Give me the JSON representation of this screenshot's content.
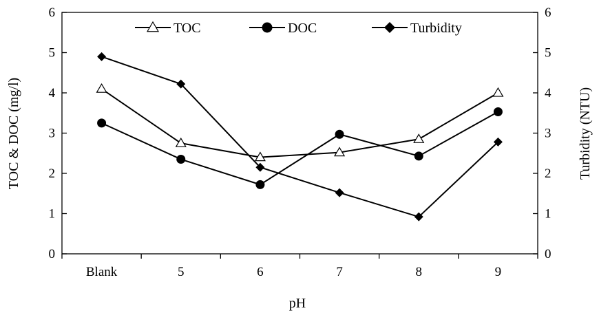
{
  "chart_data": {
    "type": "line",
    "categories": [
      "Blank",
      "5",
      "6",
      "7",
      "8",
      "9"
    ],
    "xlabel": "pH",
    "ylabel_left": "TOC & DOC (mg/l)",
    "ylabel_right": "Turbidity (NTU)",
    "ylim_left": [
      0,
      6
    ],
    "ylim_right": [
      0,
      6
    ],
    "yticks_left": [
      "0",
      "1",
      "2",
      "3",
      "4",
      "5",
      "6"
    ],
    "yticks_right": [
      "0",
      "1",
      "2",
      "3",
      "4",
      "5",
      "6"
    ],
    "grid": false,
    "legend_position": "top",
    "series": [
      {
        "name": "TOC",
        "marker": "open-triangle",
        "axis": "left",
        "values": [
          4.1,
          2.75,
          2.4,
          2.52,
          2.85,
          4.0
        ]
      },
      {
        "name": "DOC",
        "marker": "filled-circle",
        "axis": "left",
        "values": [
          3.25,
          2.35,
          1.72,
          2.97,
          2.43,
          3.53
        ]
      },
      {
        "name": "Turbidity",
        "marker": "filled-diamond",
        "axis": "right",
        "values": [
          4.9,
          4.22,
          2.15,
          1.52,
          0.92,
          2.78
        ]
      }
    ]
  }
}
